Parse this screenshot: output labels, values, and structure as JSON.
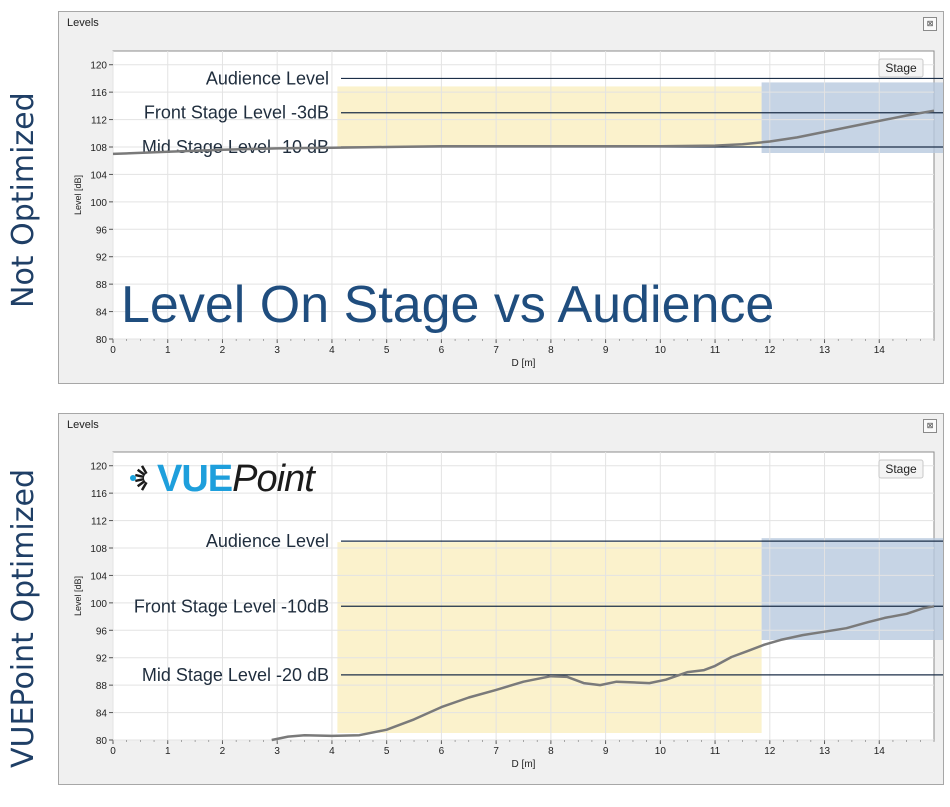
{
  "side_labels": {
    "top": "Not Optimized",
    "bottom": "VUEPoint  Optimized"
  },
  "panels": [
    {
      "window_title": "Levels",
      "stage_label": "Stage",
      "xlabel": "D [m]",
      "ylabel": "Level [dB]",
      "overlay_title": "Level On Stage vs Audience",
      "logo": null,
      "reference_lines": [
        {
          "label": "Audience Level",
          "y": 118
        },
        {
          "label": "Front Stage Level -3dB",
          "y": 113
        },
        {
          "label": "Mid Stage Level -10 dB",
          "y": 108
        }
      ]
    },
    {
      "window_title": "Levels",
      "stage_label": "Stage",
      "xlabel": "D [m]",
      "ylabel": "Level [dB]",
      "overlay_title": "",
      "logo": {
        "blue": "VUE",
        "dark": "Point"
      },
      "reference_lines": [
        {
          "label": "Audience Level",
          "y": 109
        },
        {
          "label": "Front Stage Level -10dB",
          "y": 99.5
        },
        {
          "label": "Mid Stage Level -20 dB",
          "y": 89.5
        }
      ]
    }
  ],
  "chart_data": [
    {
      "type": "line",
      "xlabel": "D [m]",
      "ylabel": "Level [dB]",
      "xlim": [
        0,
        15
      ],
      "ylim": [
        80,
        122
      ],
      "xticks": [
        0,
        1,
        2,
        3,
        4,
        5,
        6,
        7,
        8,
        9,
        10,
        11,
        12,
        13,
        14
      ],
      "yticks": [
        80,
        84,
        88,
        92,
        96,
        100,
        104,
        108,
        112,
        116,
        120
      ],
      "grid": true,
      "audience_zone": [
        4.1,
        11.85
      ],
      "stage_zone": [
        11.85,
        15
      ],
      "x": [
        0,
        1,
        2,
        3,
        4,
        5,
        6,
        7,
        8,
        9,
        10,
        11,
        11.5,
        12,
        12.5,
        13,
        13.5,
        14,
        14.5,
        15
      ],
      "values": [
        107,
        107.3,
        107.6,
        107.8,
        107.9,
        108,
        108.1,
        108.1,
        108.1,
        108.1,
        108.1,
        108.2,
        108.4,
        108.8,
        109.4,
        110.2,
        111.0,
        111.8,
        112.6,
        113.3
      ]
    },
    {
      "type": "line",
      "xlabel": "D [m]",
      "ylabel": "Level [dB]",
      "xlim": [
        0,
        15
      ],
      "ylim": [
        80,
        122
      ],
      "xticks": [
        0,
        1,
        2,
        3,
        4,
        5,
        6,
        7,
        8,
        9,
        10,
        11,
        12,
        13,
        14
      ],
      "yticks": [
        80,
        84,
        88,
        92,
        96,
        100,
        104,
        108,
        112,
        116,
        120
      ],
      "grid": true,
      "audience_zone": [
        4.1,
        11.85
      ],
      "stage_zone": [
        11.85,
        15
      ],
      "x": [
        2.9,
        3.2,
        3.5,
        4,
        4.5,
        5,
        5.5,
        6,
        6.5,
        7,
        7.5,
        8,
        8.3,
        8.6,
        8.9,
        9.2,
        9.5,
        9.8,
        10.1,
        10.5,
        10.8,
        11,
        11.3,
        11.6,
        11.9,
        12.2,
        12.6,
        13,
        13.4,
        13.8,
        14.1,
        14.5,
        14.8,
        15
      ],
      "values": [
        80,
        80.5,
        80.7,
        80.6,
        80.7,
        81.5,
        83,
        84.8,
        86.2,
        87.3,
        88.5,
        89.3,
        89.2,
        88.3,
        88.0,
        88.5,
        88.4,
        88.3,
        88.8,
        89.9,
        90.2,
        90.8,
        92.1,
        93.0,
        93.9,
        94.6,
        95.3,
        95.8,
        96.3,
        97.2,
        97.8,
        98.4,
        99.2,
        99.5
      ]
    }
  ]
}
